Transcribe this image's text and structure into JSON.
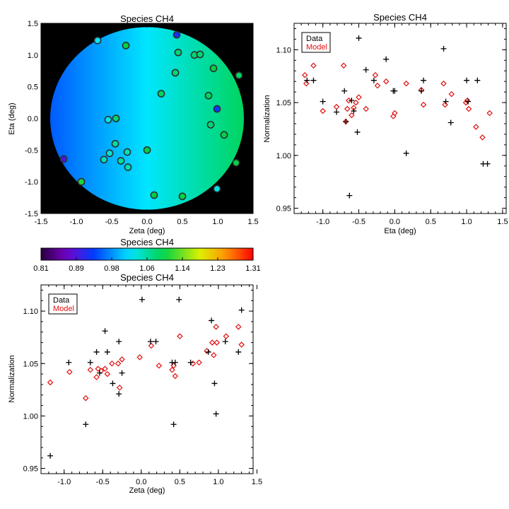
{
  "colors": {
    "data_marker": "#000000",
    "model_marker": "#e01010",
    "map_background": "#000000",
    "point_outline": "#2f2f2f"
  },
  "colorbar": {
    "title": "Species CH4",
    "tick_labels": [
      "0.81",
      "0.89",
      "0.98",
      "1.06",
      "1.14",
      "1.23",
      "1.31"
    ],
    "range": [
      0.81,
      1.31
    ],
    "colormap": "rainbow"
  },
  "chart_data": [
    {
      "type": "scatter",
      "panel": "map",
      "title": "Species CH4",
      "xlabel": "Zeta (deg)",
      "ylabel": "Eta (deg)",
      "xlim": [
        -1.5,
        1.5
      ],
      "ylim": [
        -1.5,
        1.5
      ],
      "x_ticks": [
        "-1.5",
        "-1.0",
        "-0.5",
        "0.0",
        "0.5",
        "1.0",
        "1.5"
      ],
      "y_ticks": [
        "-1.5",
        "-1.0",
        "-0.5",
        "0.0",
        "0.5",
        "1.0",
        "1.5"
      ],
      "field_value_range": [
        0.95,
        1.09
      ],
      "field_gradient": "left to right",
      "points": [
        {
          "x": -0.7,
          "y": 1.23,
          "v": 1.02
        },
        {
          "x": 0.42,
          "y": 1.32,
          "v": 0.92
        },
        {
          "x": -0.3,
          "y": 1.15,
          "v": 1.1
        },
        {
          "x": 0.44,
          "y": 1.04,
          "v": 1.08
        },
        {
          "x": 0.67,
          "y": 1.0,
          "v": 1.08
        },
        {
          "x": 0.75,
          "y": 1.01,
          "v": 1.08
        },
        {
          "x": 0.94,
          "y": 0.79,
          "v": 1.1
        },
        {
          "x": 0.4,
          "y": 0.72,
          "v": 1.08
        },
        {
          "x": 1.3,
          "y": 0.68,
          "v": 1.09
        },
        {
          "x": 0.2,
          "y": 0.39,
          "v": 1.09
        },
        {
          "x": 0.87,
          "y": 0.36,
          "v": 1.09
        },
        {
          "x": 0.99,
          "y": 0.15,
          "v": 0.93
        },
        {
          "x": -0.55,
          "y": -0.02,
          "v": 1.03
        },
        {
          "x": -0.44,
          "y": 0.0,
          "v": 1.08
        },
        {
          "x": 0.9,
          "y": -0.1,
          "v": 1.08
        },
        {
          "x": 1.09,
          "y": -0.26,
          "v": 1.1
        },
        {
          "x": -0.45,
          "y": -0.4,
          "v": 1.06
        },
        {
          "x": -0.53,
          "y": -0.55,
          "v": 1.04
        },
        {
          "x": -0.61,
          "y": -0.65,
          "v": 1.05
        },
        {
          "x": -0.37,
          "y": -0.67,
          "v": 1.06
        },
        {
          "x": -0.28,
          "y": -0.53,
          "v": 1.05
        },
        {
          "x": -0.27,
          "y": -0.77,
          "v": 1.05
        },
        {
          "x": 0.0,
          "y": -0.5,
          "v": 1.1
        },
        {
          "x": -0.93,
          "y": -1.0,
          "v": 1.11
        },
        {
          "x": 0.1,
          "y": -1.21,
          "v": 1.1
        },
        {
          "x": 0.5,
          "y": -1.23,
          "v": 1.1
        },
        {
          "x": 0.99,
          "y": -1.11,
          "v": 1.03
        },
        {
          "x": 1.26,
          "y": -0.7,
          "v": 1.1
        },
        {
          "x": -1.18,
          "y": -0.64,
          "v": 0.9
        }
      ]
    },
    {
      "type": "scatter",
      "panel": "eta",
      "title": "Species CH4",
      "xlabel": "Eta (deg)",
      "ylabel": "Normalization",
      "xlim": [
        -1.4,
        1.55
      ],
      "ylim": [
        0.945,
        1.125
      ],
      "x_ticks": [
        "-1.0",
        "-0.5",
        "0.0",
        "0.5",
        "1.0",
        "1.5"
      ],
      "y_ticks": [
        "0.95",
        "1.00",
        "1.05",
        "1.10"
      ],
      "legend": {
        "position": "top-left",
        "entries": [
          "Data",
          "Model"
        ]
      },
      "series": [
        {
          "name": "Data",
          "marker": "plus",
          "points": [
            [
              -1.23,
              1.107
            ],
            [
              -1.22,
              1.071
            ],
            [
              -1.13,
              1.071
            ],
            [
              -1.0,
              1.051
            ],
            [
              -0.81,
              1.041
            ],
            [
              -0.7,
              1.061
            ],
            [
              -0.68,
              1.032
            ],
            [
              -0.63,
              0.962
            ],
            [
              -0.6,
              1.052
            ],
            [
              -0.57,
              1.042
            ],
            [
              -0.52,
              1.022
            ],
            [
              -0.5,
              1.111
            ],
            [
              -0.4,
              1.081
            ],
            [
              -0.29,
              1.071
            ],
            [
              -0.12,
              1.091
            ],
            [
              -0.02,
              1.061
            ],
            [
              0.0,
              1.061
            ],
            [
              0.16,
              1.002
            ],
            [
              0.37,
              1.061
            ],
            [
              0.4,
              1.071
            ],
            [
              0.68,
              1.101
            ],
            [
              0.71,
              1.051
            ],
            [
              0.78,
              1.031
            ],
            [
              1.0,
              1.071
            ],
            [
              1.02,
              1.051
            ],
            [
              1.15,
              1.071
            ],
            [
              1.23,
              0.992
            ],
            [
              1.29,
              0.992
            ]
          ]
        },
        {
          "name": "Model",
          "marker": "diamond",
          "points": [
            [
              -1.25,
              1.076
            ],
            [
              -1.23,
              1.068
            ],
            [
              -1.13,
              1.085
            ],
            [
              -1.0,
              1.042
            ],
            [
              -0.81,
              1.046
            ],
            [
              -0.71,
              1.085
            ],
            [
              -0.68,
              1.032
            ],
            [
              -0.66,
              1.044
            ],
            [
              -0.64,
              1.052
            ],
            [
              -0.6,
              1.038
            ],
            [
              -0.57,
              1.045
            ],
            [
              -0.54,
              1.05
            ],
            [
              -0.5,
              1.055
            ],
            [
              -0.4,
              1.044
            ],
            [
              -0.27,
              1.076
            ],
            [
              -0.24,
              1.066
            ],
            [
              -0.12,
              1.07
            ],
            [
              -0.02,
              1.037
            ],
            [
              0.0,
              1.04
            ],
            [
              0.16,
              1.068
            ],
            [
              0.37,
              1.062
            ],
            [
              0.4,
              1.048
            ],
            [
              0.68,
              1.068
            ],
            [
              0.7,
              1.048
            ],
            [
              0.79,
              1.058
            ],
            [
              0.99,
              1.05
            ],
            [
              1.01,
              1.052
            ],
            [
              1.03,
              1.044
            ],
            [
              1.13,
              1.027
            ],
            [
              1.22,
              1.017
            ],
            [
              1.32,
              1.04
            ]
          ]
        }
      ]
    },
    {
      "type": "scatter",
      "panel": "zeta",
      "title": "Species CH4",
      "xlabel": "Zeta (deg)",
      "ylabel": "Normalization",
      "xlim": [
        -1.3,
        1.45
      ],
      "ylim": [
        0.945,
        1.125
      ],
      "x_ticks": [
        "-1.0",
        "-0.5",
        "0.0",
        "0.5",
        "1.0",
        "1.5"
      ],
      "y_ticks": [
        "0.95",
        "1.00",
        "1.05",
        "1.10"
      ],
      "legend": {
        "position": "top-left",
        "entries": [
          "Data",
          "Model"
        ]
      },
      "series": [
        {
          "name": "Data",
          "marker": "plus",
          "points": [
            [
              -1.18,
              0.962
            ],
            [
              -0.94,
              1.051
            ],
            [
              -0.72,
              0.992
            ],
            [
              -0.66,
              1.051
            ],
            [
              -0.58,
              1.061
            ],
            [
              -0.54,
              1.041
            ],
            [
              -0.47,
              1.081
            ],
            [
              -0.44,
              1.061
            ],
            [
              -0.37,
              1.031
            ],
            [
              -0.29,
              1.021
            ],
            [
              -0.29,
              1.071
            ],
            [
              -0.25,
              1.041
            ],
            [
              0.01,
              1.111
            ],
            [
              0.12,
              1.071
            ],
            [
              0.19,
              1.071
            ],
            [
              0.4,
              1.051
            ],
            [
              0.42,
              0.992
            ],
            [
              0.44,
              1.051
            ],
            [
              0.49,
              1.111
            ],
            [
              0.64,
              1.051
            ],
            [
              0.87,
              1.061
            ],
            [
              0.91,
              1.091
            ],
            [
              0.95,
              1.031
            ],
            [
              0.97,
              1.002
            ],
            [
              1.09,
              1.071
            ],
            [
              1.26,
              1.061
            ],
            [
              1.3,
              1.101
            ]
          ]
        },
        {
          "name": "Model",
          "marker": "diamond",
          "points": [
            [
              -1.18,
              1.032
            ],
            [
              -0.93,
              1.042
            ],
            [
              -0.72,
              1.017
            ],
            [
              -0.66,
              1.044
            ],
            [
              -0.56,
              1.045
            ],
            [
              -0.58,
              1.037
            ],
            [
              -0.52,
              1.043
            ],
            [
              -0.47,
              1.045
            ],
            [
              -0.44,
              1.04
            ],
            [
              -0.38,
              1.05
            ],
            [
              -0.3,
              1.05
            ],
            [
              -0.28,
              1.027
            ],
            [
              -0.25,
              1.054
            ],
            [
              -0.02,
              1.056
            ],
            [
              0.13,
              1.067
            ],
            [
              0.23,
              1.048
            ],
            [
              0.4,
              1.044
            ],
            [
              0.42,
              1.048
            ],
            [
              0.44,
              1.038
            ],
            [
              0.5,
              1.076
            ],
            [
              0.67,
              1.05
            ],
            [
              0.75,
              1.051
            ],
            [
              0.85,
              1.062
            ],
            [
              0.92,
              1.07
            ],
            [
              0.94,
              1.058
            ],
            [
              0.97,
              1.085
            ],
            [
              0.98,
              1.07
            ],
            [
              1.1,
              1.076
            ],
            [
              1.26,
              1.085
            ],
            [
              1.3,
              1.068
            ]
          ]
        }
      ]
    }
  ]
}
